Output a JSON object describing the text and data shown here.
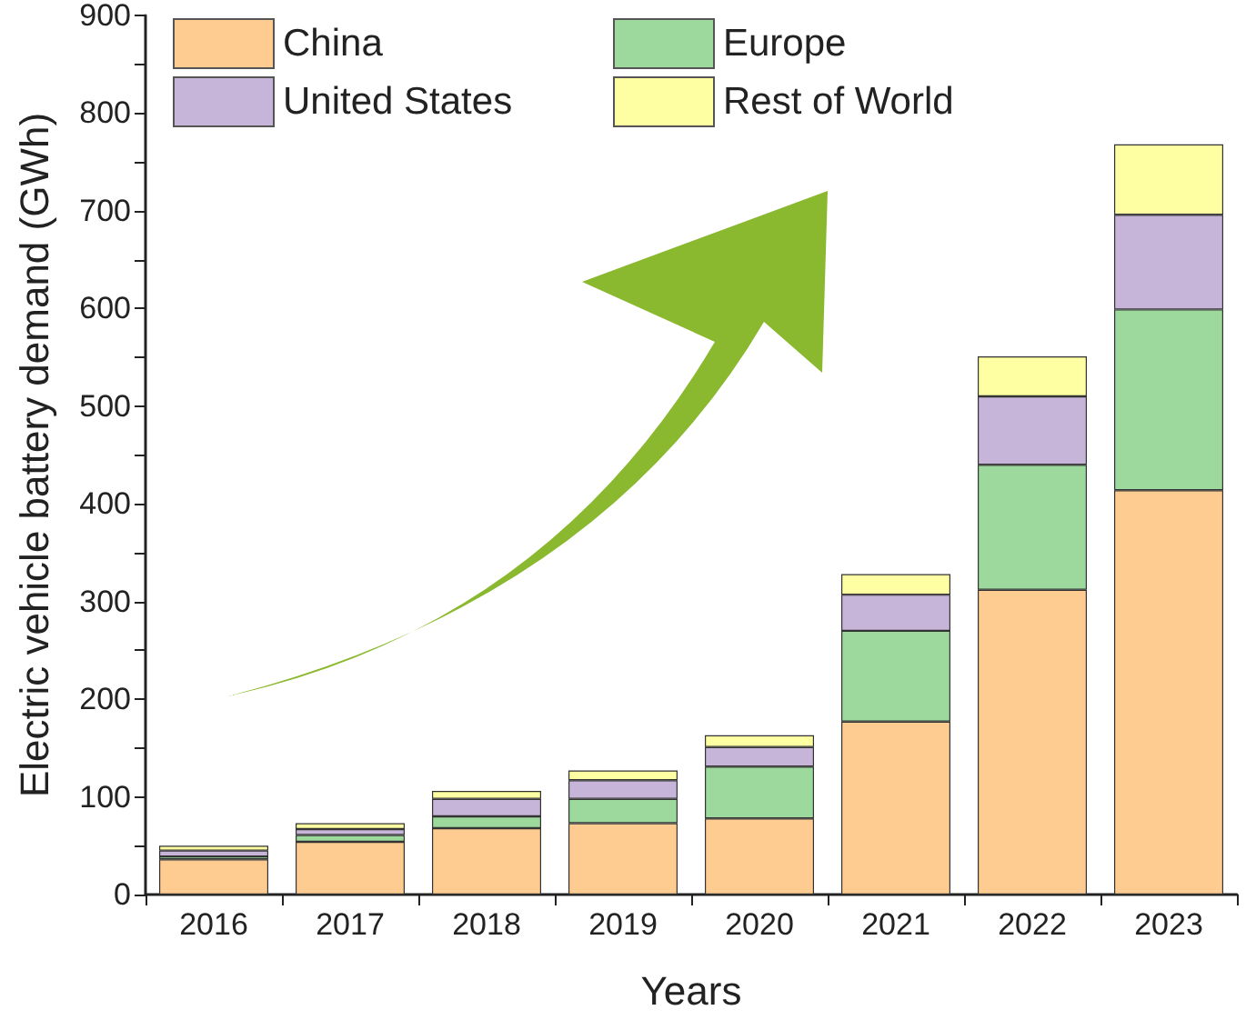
{
  "chart_data": {
    "type": "bar",
    "stacked": true,
    "xlabel": "Years",
    "ylabel": "Electric vehicle battery demand (GWh)",
    "categories": [
      "2016",
      "2017",
      "2018",
      "2019",
      "2020",
      "2021",
      "2022",
      "2023"
    ],
    "series": [
      {
        "name": "China",
        "color": "#fecc91",
        "values": [
          36,
          54,
          68,
          73,
          78,
          177,
          312,
          414
        ]
      },
      {
        "name": "Europe",
        "color": "#9dd89c",
        "values": [
          3,
          7,
          12,
          25,
          53,
          93,
          128,
          185
        ]
      },
      {
        "name": "United States",
        "color": "#c7b5d9",
        "values": [
          6,
          6,
          18,
          19,
          20,
          37,
          70,
          97
        ]
      },
      {
        "name": "Rest of World",
        "color": "#fefea2",
        "values": [
          5,
          6,
          8,
          10,
          12,
          21,
          41,
          72
        ]
      }
    ],
    "ylim": [
      0,
      900
    ],
    "yticks": [
      0,
      {
        "value": 50,
        "label": null
      },
      100,
      {
        "value": 150,
        "label": null
      },
      200,
      {
        "value": 250,
        "label": null
      },
      300,
      {
        "value": 350,
        "label": null
      },
      400,
      {
        "value": 450,
        "label": null
      },
      500,
      {
        "value": 550,
        "label": null
      },
      600,
      {
        "value": 650,
        "label": null
      },
      700,
      {
        "value": 750,
        "label": null
      },
      800,
      {
        "value": 850,
        "label": null
      },
      900
    ],
    "grid": false,
    "legend": "top left"
  }
}
